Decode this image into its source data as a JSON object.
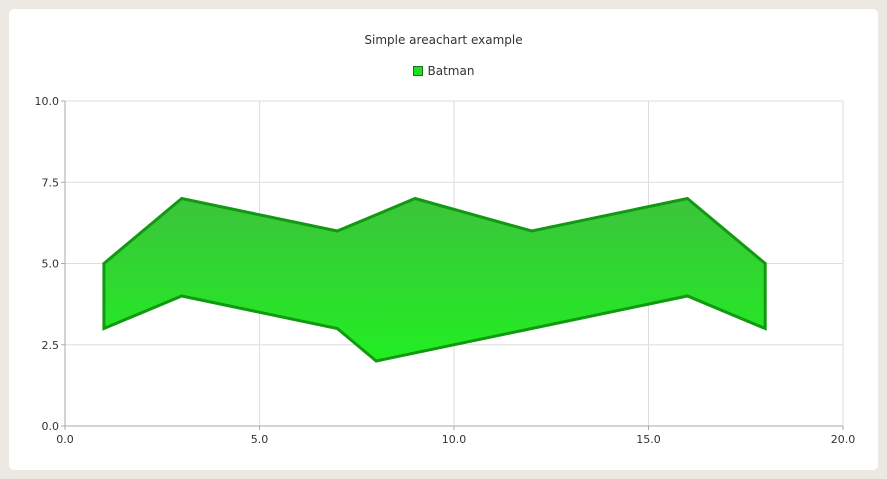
{
  "chart_data": {
    "type": "area",
    "title": "Simple areachart example",
    "xlabel": "",
    "ylabel": "",
    "xlim": [
      0,
      20
    ],
    "ylim": [
      0,
      10
    ],
    "x_ticks": [
      "0.0",
      "5.0",
      "10.0",
      "15.0",
      "20.0"
    ],
    "y_ticks": [
      "0.0",
      "2.5",
      "5.0",
      "7.5",
      "10.0"
    ],
    "grid": true,
    "legend_position": "top",
    "series": [
      {
        "name": "Batman",
        "color": "#22dd22",
        "border_color": "#119911",
        "upper": [
          {
            "x": 1,
            "y": 5
          },
          {
            "x": 3,
            "y": 7
          },
          {
            "x": 7,
            "y": 6
          },
          {
            "x": 9,
            "y": 7
          },
          {
            "x": 12,
            "y": 6
          },
          {
            "x": 16,
            "y": 7
          },
          {
            "x": 18,
            "y": 5
          }
        ],
        "lower": [
          {
            "x": 1,
            "y": 3
          },
          {
            "x": 3,
            "y": 4
          },
          {
            "x": 7,
            "y": 3
          },
          {
            "x": 8,
            "y": 2
          },
          {
            "x": 12,
            "y": 3
          },
          {
            "x": 16,
            "y": 4
          },
          {
            "x": 18,
            "y": 3
          }
        ]
      }
    ]
  }
}
